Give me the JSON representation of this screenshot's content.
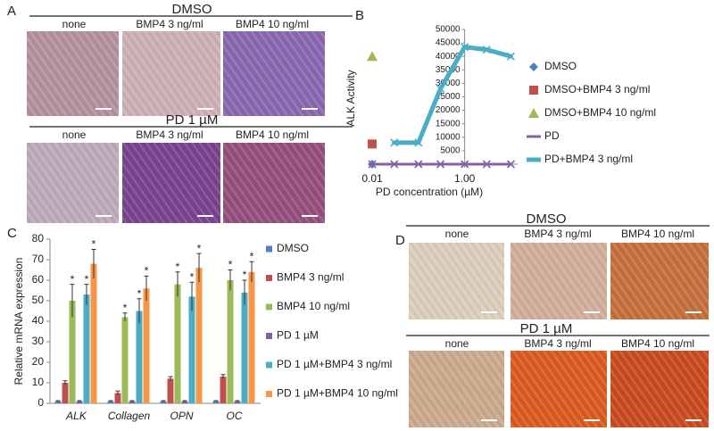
{
  "panels": {
    "A": {
      "letter": "A",
      "top_label": "DMSO",
      "bottom_label": "PD 1 µM",
      "captions_top": [
        "none",
        "BMP4 3 ng/ml",
        "BMP4 10 ng/ml"
      ],
      "captions_bottom": [
        "none",
        "BMP4 3 ng/ml",
        "BMP4 10 ng/ml"
      ]
    },
    "D": {
      "letter": "D",
      "top_label": "DMSO",
      "bottom_label": "PD 1 µM",
      "captions_top": [
        "none",
        "BMP4 3 ng/ml",
        "BMP4 10 ng/ml"
      ],
      "captions_bottom": [
        "none",
        "BMP4 3 ng/ml",
        "BMP4 10 ng/ml"
      ]
    }
  },
  "chart_data": [
    {
      "type": "line",
      "panel_label": "B",
      "ylabel": "ALK Activity",
      "xlabel": "PD concentration (µM)",
      "xscale": "log",
      "xlim": [
        0.008,
        14
      ],
      "xticks": [
        0.01,
        {
          "value": 1,
          "label": "1.00"
        }
      ],
      "ylim": [
        0,
        50000
      ],
      "yticks": [
        5000,
        10000,
        15000,
        20000,
        25000,
        30000,
        35000,
        40000,
        45000,
        50000
      ],
      "yaxis_crosses": 1,
      "series": [
        {
          "name": "DMSO",
          "color": "#4f81bd",
          "marker": "diamond",
          "x": [
            0.01
          ],
          "values": [
            0
          ]
        },
        {
          "name": "DMSO+BMP4 3 ng/ml",
          "color": "#c0504d",
          "marker": "square",
          "x": [
            0.01
          ],
          "values": [
            7500
          ]
        },
        {
          "name": "DMSO+BMP4 10 ng/ml",
          "color": "#9bbb59",
          "marker": "triangle",
          "x": [
            0.01
          ],
          "values": [
            40000
          ]
        },
        {
          "name": "PD",
          "color": "#8064a2",
          "marker": "x",
          "line": true,
          "x": [
            0.01,
            0.03,
            0.1,
            0.3,
            1,
            3,
            10
          ],
          "values": [
            0,
            0,
            0,
            0,
            0,
            0,
            0
          ]
        },
        {
          "name": "PD+BMP4 3 ng/ml",
          "color": "#4bacc6",
          "marker": "x",
          "line": true,
          "x": [
            0.03,
            0.1,
            0.3,
            1,
            3,
            10
          ],
          "values": [
            8000,
            8000,
            28000,
            43500,
            42500,
            40000
          ]
        }
      ]
    },
    {
      "type": "bar",
      "panel_label": "C",
      "ylabel": "Relative mRNA expression",
      "categories": [
        "ALK",
        "Collagen",
        "OPN",
        "OC"
      ],
      "ylim": [
        0,
        80
      ],
      "yticks": [
        0,
        10,
        20,
        30,
        40,
        50,
        60,
        70,
        80
      ],
      "series": [
        {
          "name": "DMSO",
          "color": "#4f81bd",
          "values": [
            1,
            1,
            1,
            1
          ],
          "errors": [
            0.3,
            0.3,
            0.3,
            0.3
          ]
        },
        {
          "name": "BMP4 3 ng/ml",
          "color": "#c0504d",
          "values": [
            10,
            5,
            12,
            13
          ],
          "errors": [
            1,
            1,
            1,
            1
          ]
        },
        {
          "name": "BMP4 10 ng/ml",
          "color": "#9bbb59",
          "values": [
            50,
            42,
            58,
            60
          ],
          "errors": [
            8,
            2,
            6,
            5
          ],
          "annotations": [
            "*",
            "*",
            "*",
            "*"
          ]
        },
        {
          "name": "PD 1 µM",
          "color": "#8064a2",
          "values": [
            1,
            1,
            1,
            1
          ],
          "errors": [
            0.3,
            0.3,
            0.3,
            0.3
          ]
        },
        {
          "name": "PD 1 µM+BMP4 3 ng/ml",
          "color": "#4bacc6",
          "values": [
            53,
            45,
            52,
            54
          ],
          "errors": [
            5,
            6,
            7,
            6
          ],
          "annotations": [
            "*",
            "*",
            "*",
            "*"
          ]
        },
        {
          "name": "PD 1 µM+BMP4 10 ng/ml",
          "color": "#f79646",
          "values": [
            68,
            56,
            66,
            64
          ],
          "errors": [
            7,
            6,
            7,
            5
          ],
          "annotations": [
            "*",
            "*",
            "*",
            "*"
          ]
        }
      ]
    }
  ]
}
